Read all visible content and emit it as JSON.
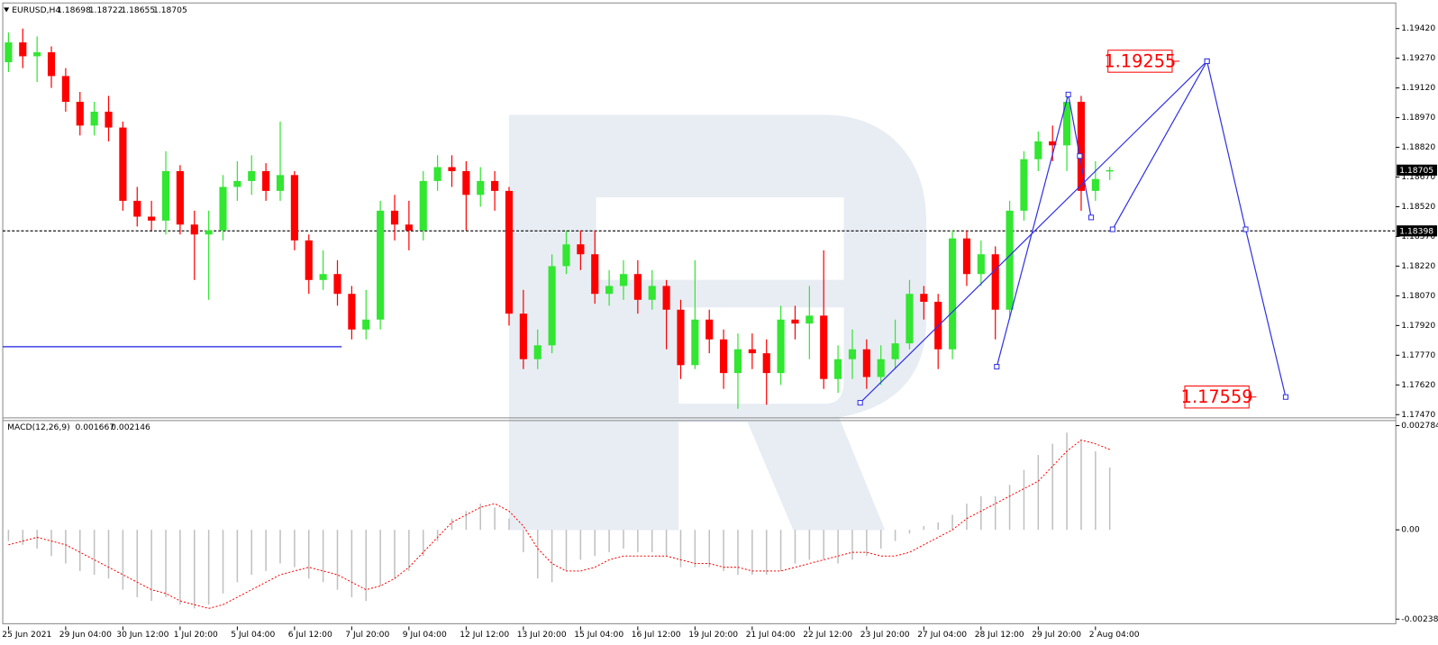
{
  "chart_data": {
    "type": "candlestick",
    "title": "EURUSD,H4",
    "categories": [
      "25 Jun 2021",
      null,
      null,
      null,
      "29 Jun 04:00",
      null,
      null,
      null,
      "30 Jun 12:00",
      null,
      null,
      null,
      "1 Jul 20:00",
      null,
      null,
      null,
      "5 Jul 04:00",
      null,
      null,
      null,
      "6 Jul 12:00",
      null,
      null,
      null,
      "7 Jul 20:00",
      null,
      null,
      null,
      "9 Jul 04:00",
      null,
      null,
      null,
      "12 Jul 12:00",
      null,
      null,
      null,
      "13 Jul 20:00",
      null,
      null,
      null,
      "15 Jul 04:00",
      null,
      null,
      null,
      "16 Jul 12:00",
      null,
      null,
      null,
      "19 Jul 20:00",
      null,
      null,
      null,
      "21 Jul 04:00",
      null,
      null,
      null,
      "22 Jul 12:00",
      null,
      null,
      null,
      "23 Jul 20:00",
      null,
      null,
      null,
      "27 Jul 04:00",
      null,
      null,
      null,
      "28 Jul 12:00",
      null,
      null,
      null,
      "29 Jul 20:00",
      null,
      null,
      null,
      "2 Aug 04:00",
      null
    ],
    "ohlc": [
      [
        1.1925,
        1.194,
        1.192,
        1.1935
      ],
      [
        1.1935,
        1.1942,
        1.1922,
        1.1928
      ],
      [
        1.1928,
        1.1938,
        1.1915,
        1.193
      ],
      [
        1.193,
        1.1933,
        1.1912,
        1.1918
      ],
      [
        1.1918,
        1.1922,
        1.19,
        1.1905
      ],
      [
        1.1905,
        1.191,
        1.1888,
        1.1893
      ],
      [
        1.1893,
        1.1905,
        1.1888,
        1.19
      ],
      [
        1.19,
        1.1908,
        1.1885,
        1.1892
      ],
      [
        1.1892,
        1.1895,
        1.185,
        1.1855
      ],
      [
        1.1855,
        1.1862,
        1.1842,
        1.1847
      ],
      [
        1.1847,
        1.1855,
        1.184,
        1.1845
      ],
      [
        1.1845,
        1.188,
        1.1838,
        1.187
      ],
      [
        1.187,
        1.1873,
        1.1838,
        1.1843
      ],
      [
        1.1843,
        1.185,
        1.1815,
        1.1838
      ],
      [
        1.1838,
        1.185,
        1.1805,
        1.184
      ],
      [
        1.184,
        1.1868,
        1.1835,
        1.1862
      ],
      [
        1.1862,
        1.1875,
        1.1855,
        1.1865
      ],
      [
        1.1865,
        1.1878,
        1.1858,
        1.187
      ],
      [
        1.187,
        1.1874,
        1.1855,
        1.186
      ],
      [
        1.186,
        1.1895,
        1.1855,
        1.1868
      ],
      [
        1.1868,
        1.187,
        1.183,
        1.1835
      ],
      [
        1.1835,
        1.1838,
        1.1808,
        1.1815
      ],
      [
        1.1815,
        1.183,
        1.181,
        1.1818
      ],
      [
        1.1818,
        1.1825,
        1.1802,
        1.1808
      ],
      [
        1.1808,
        1.1812,
        1.1785,
        1.179
      ],
      [
        1.179,
        1.181,
        1.1785,
        1.1795
      ],
      [
        1.1795,
        1.1855,
        1.179,
        1.185
      ],
      [
        1.185,
        1.1858,
        1.1835,
        1.1843
      ],
      [
        1.1843,
        1.1855,
        1.183,
        1.184
      ],
      [
        1.184,
        1.187,
        1.1835,
        1.1865
      ],
      [
        1.1865,
        1.1878,
        1.186,
        1.1872
      ],
      [
        1.1872,
        1.1878,
        1.1862,
        1.187
      ],
      [
        1.187,
        1.1875,
        1.184,
        1.1858
      ],
      [
        1.1858,
        1.1872,
        1.1852,
        1.1865
      ],
      [
        1.1865,
        1.187,
        1.185,
        1.186
      ],
      [
        1.186,
        1.1862,
        1.1792,
        1.1798
      ],
      [
        1.1798,
        1.181,
        1.177,
        1.1775
      ],
      [
        1.1775,
        1.179,
        1.177,
        1.1782
      ],
      [
        1.1782,
        1.1828,
        1.1778,
        1.1822
      ],
      [
        1.1822,
        1.184,
        1.1818,
        1.1833
      ],
      [
        1.1833,
        1.184,
        1.182,
        1.1828
      ],
      [
        1.1828,
        1.184,
        1.1803,
        1.1808
      ],
      [
        1.1808,
        1.182,
        1.1802,
        1.1812
      ],
      [
        1.1812,
        1.1825,
        1.1805,
        1.1818
      ],
      [
        1.1818,
        1.1825,
        1.1798,
        1.1805
      ],
      [
        1.1805,
        1.182,
        1.18,
        1.1812
      ],
      [
        1.1812,
        1.1815,
        1.178,
        1.18
      ],
      [
        1.18,
        1.1805,
        1.1765,
        1.1772
      ],
      [
        1.1772,
        1.1825,
        1.177,
        1.1795
      ],
      [
        1.1795,
        1.18,
        1.1778,
        1.1785
      ],
      [
        1.1785,
        1.179,
        1.176,
        1.1768
      ],
      [
        1.1768,
        1.1788,
        1.175,
        1.178
      ],
      [
        1.178,
        1.1788,
        1.177,
        1.1778
      ],
      [
        1.1778,
        1.1785,
        1.1752,
        1.1768
      ],
      [
        1.1768,
        1.1802,
        1.1762,
        1.1795
      ],
      [
        1.1795,
        1.1802,
        1.1785,
        1.1793
      ],
      [
        1.1793,
        1.1812,
        1.1775,
        1.1797
      ],
      [
        1.1797,
        1.183,
        1.176,
        1.1765
      ],
      [
        1.1765,
        1.1782,
        1.1758,
        1.1775
      ],
      [
        1.1775,
        1.179,
        1.1765,
        1.178
      ],
      [
        1.178,
        1.1785,
        1.176,
        1.1766
      ],
      [
        1.1766,
        1.1782,
        1.1762,
        1.1775
      ],
      [
        1.1775,
        1.1795,
        1.177,
        1.1783
      ],
      [
        1.1783,
        1.1815,
        1.178,
        1.1808
      ],
      [
        1.1808,
        1.1812,
        1.1795,
        1.1804
      ],
      [
        1.1804,
        1.1808,
        1.177,
        1.178
      ],
      [
        1.178,
        1.184,
        1.1775,
        1.1836
      ],
      [
        1.1836,
        1.184,
        1.1812,
        1.1818
      ],
      [
        1.1818,
        1.1835,
        1.1812,
        1.1828
      ],
      [
        1.1828,
        1.1832,
        1.1785,
        1.18
      ],
      [
        1.18,
        1.1855,
        1.1795,
        1.185
      ],
      [
        1.185,
        1.188,
        1.1845,
        1.1876
      ],
      [
        1.1876,
        1.189,
        1.187,
        1.1885
      ],
      [
        1.1885,
        1.1893,
        1.1875,
        1.1883
      ],
      [
        1.1883,
        1.1908,
        1.187,
        1.1905
      ],
      [
        1.1905,
        1.1908,
        1.185,
        1.186
      ],
      [
        1.186,
        1.1875,
        1.1855,
        1.1866
      ],
      [
        1.18698,
        1.18722,
        1.18655,
        1.18705
      ]
    ],
    "up_color": "#32e632",
    "down_color": "#ff0000",
    "xlim": [
      -0.4,
      97
    ],
    "ylim": [
      1.17456,
      1.1954
    ],
    "yticks": [
      {
        "value": 1.1942,
        "label": "1.19420"
      },
      {
        "value": 1.1927,
        "label": "1.19270"
      },
      {
        "value": 1.1912,
        "label": "1.19120"
      },
      {
        "value": 1.1897,
        "label": "1.18970"
      },
      {
        "value": 1.1882,
        "label": "1.18820"
      },
      {
        "value": 1.1867,
        "label": "1.18670"
      },
      {
        "value": 1.1852,
        "label": "1.18520"
      },
      {
        "value": 1.1837,
        "label": "1.18370"
      },
      {
        "value": 1.1822,
        "label": "1.18220"
      },
      {
        "value": 1.1807,
        "label": "1.18070"
      },
      {
        "value": 1.1792,
        "label": "1.17920"
      },
      {
        "value": 1.1777,
        "label": "1.17770"
      },
      {
        "value": 1.1762,
        "label": "1.17620"
      },
      {
        "value": 1.1747,
        "label": "1.17470"
      }
    ],
    "level": 1.18398,
    "trendline": {
      "color": "#1e1ee0",
      "points": [
        [
          -0.4,
          1.17813
        ],
        [
          23.3,
          1.17813
        ]
      ]
    },
    "forecast_color": "#3232e6",
    "forecast": [
      {
        "points": [
          [
            59.55,
            1.1753
          ],
          [
            83.8,
            1.19255
          ]
        ]
      },
      {
        "points": [
          [
            69.1,
            1.17712
          ],
          [
            74.1,
            1.19087
          ],
          [
            74.9,
            1.18776
          ],
          [
            75.7,
            1.18466
          ]
        ]
      },
      {
        "points": [
          [
            77.2,
            1.18406
          ],
          [
            83.8,
            1.19255
          ],
          [
            86.5,
            1.18406
          ],
          [
            89.3,
            1.17559
          ]
        ]
      }
    ],
    "annotation_color": "#ff0000",
    "macd": {
      "name": "MACD(12,26,9)",
      "hist_color": "#c0c0c0",
      "signal_color": "#ff0000",
      "y2lim": [
        -0.002582,
        0.002906
      ],
      "y2ticks": [
        0.002784,
        {
          "value": 0,
          "label": "0.00"
        },
        -0.002386
      ],
      "hist": [
        -0.0003,
        -0.0004,
        -0.0005,
        -0.0007,
        -0.0009,
        -0.0011,
        -0.0012,
        -0.0013,
        -0.0016,
        -0.0018,
        -0.0019,
        -0.0018,
        -0.002,
        -0.0021,
        -0.002,
        -0.0017,
        -0.0014,
        -0.0012,
        -0.0011,
        -0.0009,
        -0.001,
        -0.0013,
        -0.0014,
        -0.0016,
        -0.0018,
        -0.0019,
        -0.0015,
        -0.0013,
        -0.0011,
        -0.0007,
        -0.0003,
        0.0003,
        0.0005,
        0.0007,
        0.0006,
        0.0003,
        -0.0006,
        -0.0013,
        -0.0014,
        -0.0011,
        -0.0008,
        -0.0007,
        -0.0006,
        -0.0005,
        -0.0006,
        -0.0006,
        -0.0007,
        -0.001,
        -0.001,
        -0.001,
        -0.0011,
        -0.0012,
        -0.0012,
        -0.0012,
        -0.0011,
        -0.0009,
        -0.0008,
        -0.0008,
        -0.0009,
        -0.0008,
        -0.0007,
        -0.0005,
        -0.0003,
        -0.0001,
        0.0001,
        0.0002,
        0.0004,
        0.0007,
        0.0009,
        0.0009,
        0.0012,
        0.0016,
        0.002,
        0.0023,
        0.0026,
        0.0024,
        0.0021,
        0.001667
      ],
      "signal": [
        -0.0004,
        -0.0003,
        -0.0002,
        -0.0003,
        -0.0004,
        -0.0006,
        -0.0008,
        -0.001,
        -0.0012,
        -0.0014,
        -0.0016,
        -0.0017,
        -0.0019,
        -0.002,
        -0.0021,
        -0.002,
        -0.0018,
        -0.0016,
        -0.0014,
        -0.0012,
        -0.0011,
        -0.001,
        -0.0011,
        -0.0012,
        -0.0014,
        -0.0016,
        -0.0015,
        -0.0013,
        -0.001,
        -0.0006,
        -0.0002,
        0.0002,
        0.0004,
        0.0006,
        0.0007,
        0.0005,
        0.0001,
        -0.0005,
        -0.0009,
        -0.0011,
        -0.0011,
        -0.001,
        -0.0008,
        -0.0007,
        -0.0007,
        -0.0007,
        -0.0007,
        -0.0008,
        -0.0009,
        -0.0009,
        -0.001,
        -0.001,
        -0.0011,
        -0.0011,
        -0.0011,
        -0.001,
        -0.0009,
        -0.0008,
        -0.0007,
        -0.0006,
        -0.0006,
        -0.0007,
        -0.0007,
        -0.0006,
        -0.0004,
        -0.0002,
        0.0,
        0.0003,
        0.0005,
        0.0007,
        0.0009,
        0.0011,
        0.0013,
        0.0017,
        0.0021,
        0.0024,
        0.0023,
        0.002146
      ]
    }
  }
}
